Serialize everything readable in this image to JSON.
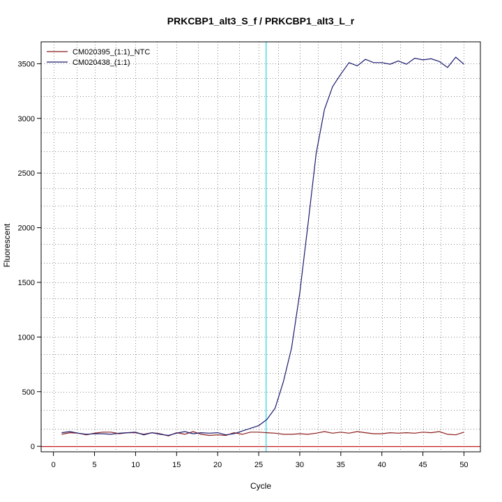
{
  "chart_data": {
    "type": "line",
    "title": "PRKCBP1_alt3_S_f / PRKCBP1_alt3_L_r",
    "xlabel": "Cycle",
    "ylabel": "Fluorescent",
    "xlim": [
      -1.5,
      52
    ],
    "ylim": [
      -50,
      3700
    ],
    "x_ticks": [
      0,
      5,
      10,
      15,
      20,
      25,
      30,
      35,
      40,
      45,
      50
    ],
    "y_ticks": [
      0,
      500,
      1000,
      1500,
      2000,
      2500,
      3000,
      3500
    ],
    "x_grid": [
      2.8,
      7.6,
      12.6,
      17.6,
      22.6,
      27.4,
      32.2,
      37.2,
      42.2,
      47.2
    ],
    "y_grid": [
      160,
      330,
      670,
      840,
      1180,
      1350,
      1680,
      1850,
      2200,
      2360,
      2700,
      2870,
      3200,
      3370
    ],
    "grid": true,
    "legend_position": "top-left",
    "threshold_cycle": 25.9,
    "threshold_color": "#22d3e6",
    "baseline_value": 0,
    "baseline_color": "#c0181c",
    "x": [
      1,
      2,
      3,
      4,
      5,
      6,
      7,
      8,
      9,
      10,
      11,
      12,
      13,
      14,
      15,
      16,
      17,
      18,
      19,
      20,
      21,
      22,
      23,
      24,
      25,
      26,
      27,
      28,
      29,
      30,
      31,
      32,
      33,
      34,
      35,
      36,
      37,
      38,
      39,
      40,
      41,
      42,
      43,
      44,
      45,
      46,
      47,
      48,
      49,
      50
    ],
    "series": [
      {
        "name": "CM020395_(1:1)_NTC",
        "color": "#8b1a1a",
        "values": [
          110,
          125,
          120,
          105,
          120,
          130,
          130,
          115,
          125,
          125,
          110,
          125,
          115,
          95,
          125,
          110,
          135,
          110,
          100,
          105,
          100,
          125,
          110,
          130,
          130,
          125,
          120,
          110,
          110,
          115,
          110,
          120,
          135,
          120,
          130,
          120,
          135,
          125,
          115,
          115,
          125,
          120,
          125,
          120,
          130,
          125,
          135,
          110,
          105,
          130
        ]
      },
      {
        "name": "CM020438_(1:1)",
        "color": "#1a1a6e",
        "values": [
          125,
          135,
          120,
          110,
          115,
          115,
          110,
          120,
          125,
          130,
          105,
          125,
          110,
          100,
          120,
          135,
          115,
          125,
          120,
          125,
          105,
          115,
          140,
          165,
          190,
          245,
          350,
          590,
          900,
          1400,
          2030,
          2680,
          3080,
          3290,
          3405,
          3510,
          3480,
          3540,
          3510,
          3510,
          3495,
          3525,
          3495,
          3550,
          3535,
          3545,
          3520,
          3465,
          3560,
          3495
        ]
      }
    ]
  }
}
